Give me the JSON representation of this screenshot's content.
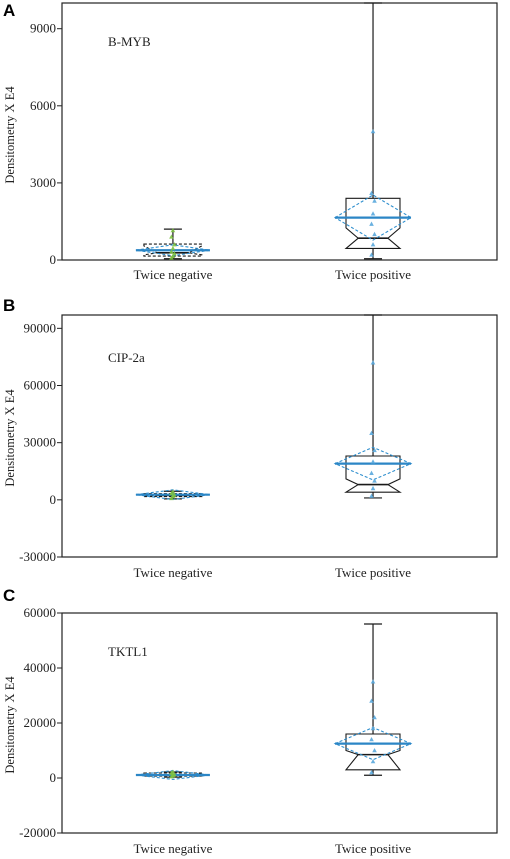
{
  "colors": {
    "box": "#1a1a1a",
    "diamond": "#2f8fce",
    "mean_line": "#2b86c6",
    "neg_points": "#7dc242",
    "pos_points": "#5aa9dd"
  },
  "chart_data": [
    {
      "panel": "A",
      "type": "box",
      "label": "B-MYB",
      "ylabel": "Densitometry X E4",
      "ylim": [
        0,
        10000
      ],
      "yticks": [
        0,
        3000,
        6000,
        9000
      ],
      "categories": [
        "Twice negative",
        "Twice positive"
      ],
      "groups": [
        {
          "name": "Twice negative",
          "min": 50,
          "q1": 150,
          "median": 280,
          "q3": 620,
          "max": 1200,
          "mean": 380,
          "notch_low": 200,
          "notch_high": 550,
          "points": [
            80,
            150,
            250,
            320,
            450,
            600,
            900,
            1150
          ]
        },
        {
          "name": "Twice positive",
          "min": 50,
          "q1": 450,
          "median": 850,
          "q3": 2400,
          "max": 10000,
          "mean": 1650,
          "notch_low": 450,
          "notch_high": 1250,
          "points": [
            200,
            600,
            1000,
            1400,
            1800,
            2300,
            2600,
            5000
          ]
        }
      ]
    },
    {
      "panel": "B",
      "type": "box",
      "label": "CIP-2a",
      "ylabel": "Densitometry X E4",
      "ylim": [
        -30000,
        97000
      ],
      "yticks": [
        -30000,
        0,
        30000,
        60000,
        90000
      ],
      "categories": [
        "Twice negative",
        "Twice positive"
      ],
      "groups": [
        {
          "name": "Twice negative",
          "min": 500,
          "q1": 1700,
          "median": 2300,
          "q3": 3200,
          "max": 4500,
          "mean": 2700,
          "notch_low": 2000,
          "notch_high": 3000,
          "points": [
            800,
            1800,
            2500,
            3300,
            4200
          ]
        },
        {
          "name": "Twice positive",
          "min": 1000,
          "q1": 4000,
          "median": 8000,
          "q3": 23000,
          "max": 97000,
          "mean": 19000,
          "notch_low": 4000,
          "notch_high": 11000,
          "points": [
            2000,
            6000,
            10000,
            14000,
            20000,
            26000,
            35000,
            72000
          ]
        }
      ]
    },
    {
      "panel": "C",
      "type": "box",
      "label": "TKTL1",
      "ylabel": "Densitometry X E4",
      "ylim": [
        -20000,
        60000
      ],
      "yticks": [
        -20000,
        0,
        20000,
        40000,
        60000
      ],
      "categories": [
        "Twice negative",
        "Twice positive"
      ],
      "groups": [
        {
          "name": "Twice negative",
          "min": 300,
          "q1": 700,
          "median": 1000,
          "q3": 1800,
          "max": 2200,
          "mean": 1100,
          "notch_low": 800,
          "notch_high": 1500,
          "points": [
            500,
            900,
            1200,
            1800,
            2200
          ]
        },
        {
          "name": "Twice positive",
          "min": 1000,
          "q1": 3000,
          "median": 8500,
          "q3": 16000,
          "max": 56000,
          "mean": 12500,
          "notch_low": 3000,
          "notch_high": 10000,
          "points": [
            2000,
            6000,
            10000,
            14000,
            18000,
            22000,
            28000,
            35000
          ]
        }
      ]
    }
  ]
}
